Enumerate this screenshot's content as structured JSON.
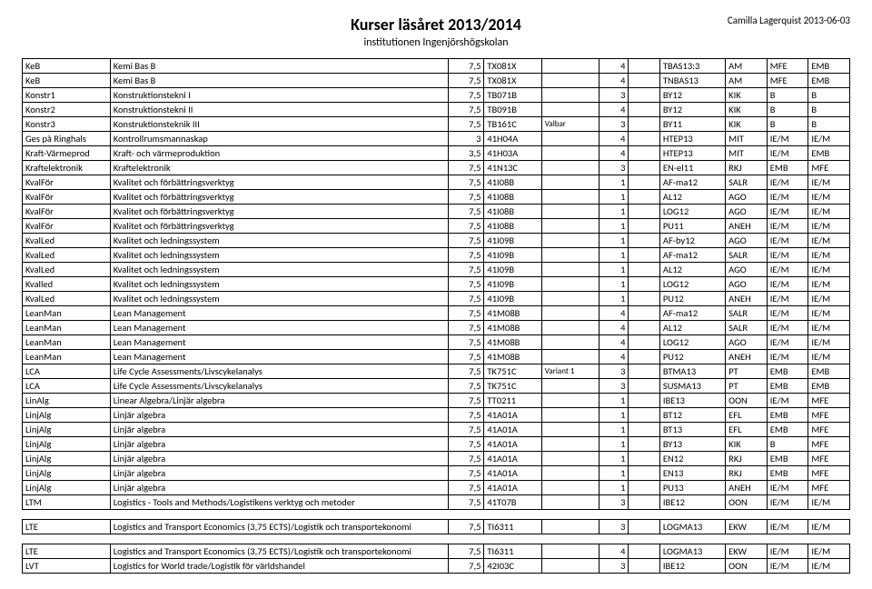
{
  "header": {
    "title": "Kurser läsåret 2013/2014",
    "subtitle": "institutionen Ingenjörshögskolan",
    "updated": "Camilla Lagerquist 2013-06-03"
  },
  "columns": [
    "code",
    "name",
    "credits",
    "coursecode",
    "note",
    "n",
    "blank",
    "prog",
    "dept",
    "p1",
    "p2"
  ],
  "rows": [
    [
      "KeB",
      "Kemi Bas B",
      "7,5",
      "TX081X",
      "",
      "4",
      "",
      "TBAS13:3",
      "AM",
      "MFE",
      "EMB"
    ],
    [
      "KeB",
      "Kemi Bas B",
      "7,5",
      "TX081X",
      "",
      "4",
      "",
      "TNBAS13",
      "AM",
      "MFE",
      "EMB"
    ],
    [
      "Konstr1",
      "Konstruktionstekni I",
      "7,5",
      "TB071B",
      "",
      "3",
      "",
      "BY12",
      "KIK",
      "B",
      "B"
    ],
    [
      "Konstr2",
      "Konstruktionstekni II",
      "7,5",
      "TB091B",
      "",
      "4",
      "",
      "BY12",
      "KIK",
      "B",
      "B"
    ],
    [
      "Konstr3",
      "Konstruktionsteknik III",
      "7,5",
      "TB161C",
      "Valbar",
      "3",
      "",
      "BY11",
      "KIK",
      "B",
      "B"
    ],
    [
      "Ges på Ringhals",
      "Kontrollrumsmannaskap",
      "3",
      "41H04A",
      "",
      "4",
      "",
      "HTEP13",
      "MIT",
      "IE/M",
      "IE/M"
    ],
    [
      "Kraft-Värmeprod",
      "Kraft- och värmeproduktion",
      "3,5",
      "41H03A",
      "",
      "4",
      "",
      "HTEP13",
      "MIT",
      "IE/M",
      "EMB"
    ],
    [
      "Kraftelektronik",
      "Kraftelektronik",
      "7,5",
      "41N13C",
      "",
      "3",
      "",
      "EN-el11",
      "RKJ",
      "EMB",
      "MFE"
    ],
    [
      "KvalFör",
      "Kvalitet och förbättringsverktyg",
      "7,5",
      "41I08B",
      "",
      "1",
      "",
      "AF-ma12",
      "SALR",
      "IE/M",
      "IE/M"
    ],
    [
      "KvalFör",
      "Kvalitet och förbättringsverktyg",
      "7,5",
      "41I08B",
      "",
      "1",
      "",
      "AL12",
      "AGO",
      "IE/M",
      "IE/M"
    ],
    [
      "KvalFör",
      "Kvalitet och förbättringsverktyg",
      "7,5",
      "41I08B",
      "",
      "1",
      "",
      "LOG12",
      "AGO",
      "IE/M",
      "IE/M"
    ],
    [
      "KvalFör",
      "Kvalitet och förbättringsverktyg",
      "7,5",
      "41I08B",
      "",
      "1",
      "",
      "PU11",
      "ANEH",
      "IE/M",
      "IE/M"
    ],
    [
      "KvalLed",
      "Kvalitet och ledningssystem",
      "7,5",
      "41I09B",
      "",
      "1",
      "",
      "AF-by12",
      "AGO",
      "IE/M",
      "IE/M"
    ],
    [
      "KvalLed",
      "Kvalitet och ledningssystem",
      "7,5",
      "41I09B",
      "",
      "1",
      "",
      "AF-ma12",
      "SALR",
      "IE/M",
      "IE/M"
    ],
    [
      "KvalLed",
      "Kvalitet och ledningssystem",
      "7,5",
      "41I09B",
      "",
      "1",
      "",
      "AL12",
      "AGO",
      "IE/M",
      "IE/M"
    ],
    [
      "Kvalled",
      "Kvalitet och ledningssystem",
      "7,5",
      "41I09B",
      "",
      "1",
      "",
      "LOG12",
      "AGO",
      "IE/M",
      "IE/M"
    ],
    [
      "KvalLed",
      "Kvalitet och ledningssystem",
      "7,5",
      "41I09B",
      "",
      "1",
      "",
      "PU12",
      "ANEH",
      "IE/M",
      "IE/M"
    ],
    [
      "LeanMan",
      "Lean Management",
      "7,5",
      "41M08B",
      "",
      "4",
      "",
      "AF-ma12",
      "SALR",
      "IE/M",
      "IE/M"
    ],
    [
      "LeanMan",
      "Lean Management",
      "7,5",
      "41M08B",
      "",
      "4",
      "",
      "AL12",
      "SALR",
      "IE/M",
      "IE/M"
    ],
    [
      "LeanMan",
      "Lean Management",
      "7,5",
      "41M08B",
      "",
      "4",
      "",
      "LOG12",
      "AGO",
      "IE/M",
      "IE/M"
    ],
    [
      "LeanMan",
      "Lean Management",
      "7,5",
      "41M08B",
      "",
      "4",
      "",
      "PU12",
      "ANEH",
      "IE/M",
      "IE/M"
    ],
    [
      "LCA",
      "Life Cycle Assessments/Livscykelanalys",
      "7,5",
      "TK751C",
      "Variant 1",
      "3",
      "",
      "BTMA13",
      "PT",
      "EMB",
      "EMB"
    ],
    [
      "LCA",
      "Life Cycle Assessments/Livscykelanalys",
      "7,5",
      "TK751C",
      "",
      "3",
      "",
      "SUSMA13",
      "PT",
      "EMB",
      "EMB"
    ],
    [
      "LinAlg",
      "Linear Algebra/Linjär algebra",
      "7,5",
      "TT0211",
      "",
      "1",
      "",
      "IBE13",
      "OON",
      "IE/M",
      "MFE"
    ],
    [
      "LinjAlg",
      "Linjär algebra",
      "7,5",
      "41A01A",
      "",
      "1",
      "",
      "BT12",
      "EFL",
      "EMB",
      "MFE"
    ],
    [
      "LinjAlg",
      "Linjär algebra",
      "7,5",
      "41A01A",
      "",
      "1",
      "",
      "BT13",
      "EFL",
      "EMB",
      "MFE"
    ],
    [
      "LinjAlg",
      "Linjär algebra",
      "7,5",
      "41A01A",
      "",
      "1",
      "",
      "BY13",
      "KIK",
      "B",
      "MFE"
    ],
    [
      "LinjAlg",
      "Linjär algebra",
      "7,5",
      "41A01A",
      "",
      "1",
      "",
      "EN12",
      "RKJ",
      "EMB",
      "MFE"
    ],
    [
      "LinjAlg",
      "Linjär algebra",
      "7,5",
      "41A01A",
      "",
      "1",
      "",
      "EN13",
      "RKJ",
      "EMB",
      "MFE"
    ],
    [
      "LinjAlg",
      "Linjär algebra",
      "7,5",
      "41A01A",
      "",
      "1",
      "",
      "PU13",
      "ANEH",
      "IE/M",
      "MFE"
    ],
    [
      "LTM",
      "Logistics - Tools and Methods/Logistikens verktyg och metoder",
      "7,5",
      "41T07B",
      "",
      "3",
      "",
      "IBE12",
      "OON",
      "IE/M",
      "IE/M"
    ],
    "spacer",
    [
      "LTE",
      "Logistics and Transport Economics (3,75 ECTS)/Logistik och transportekonomi",
      "7,5",
      "TI6311",
      "",
      "3",
      "",
      "LOGMA13",
      "EKW",
      "IE/M",
      "IE/M"
    ],
    "spacer",
    [
      "LTE",
      "Logistics and Transport Economics (3,75 ECTS)/Logistik och transportekonomi",
      "7,5",
      "TI6311",
      "",
      "4",
      "",
      "LOGMA13",
      "EKW",
      "IE/M",
      "IE/M"
    ],
    [
      "LVT",
      "Logistics for World trade/Logistik för världshandel",
      "7,5",
      "42I03C",
      "",
      "3",
      "",
      "IBE12",
      "OON",
      "IE/M",
      "IE/M"
    ]
  ]
}
